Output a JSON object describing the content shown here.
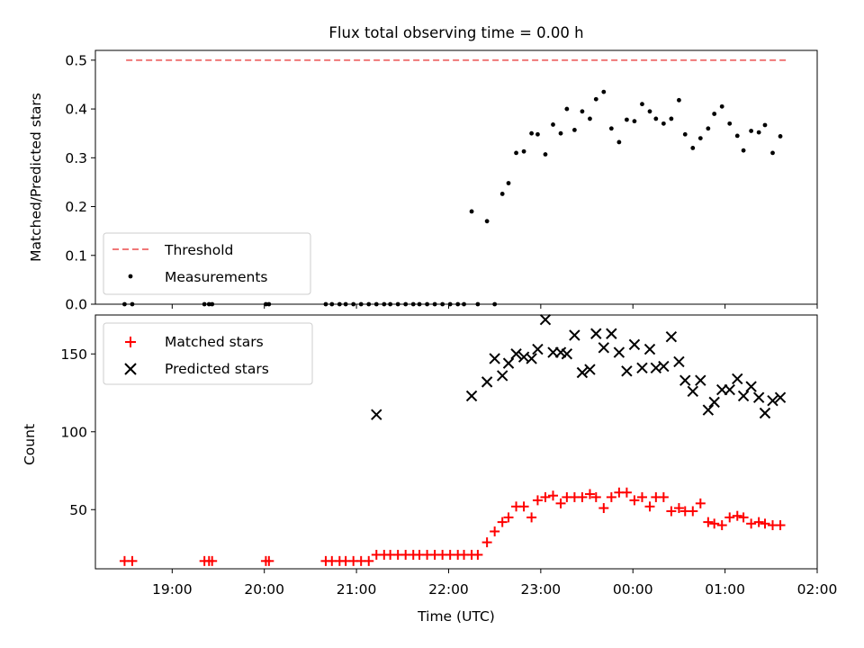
{
  "title": "Flux total observing time = 0.00 h",
  "chart_data": [
    {
      "type": "scatter",
      "ylabel": "Matched/Predicted stars",
      "ylim": [
        0,
        0.52
      ],
      "yticks": [
        0.0,
        0.1,
        0.2,
        0.3,
        0.4,
        0.5
      ],
      "ytick_labels": [
        "0.0",
        "0.1",
        "0.2",
        "0.3",
        "0.4",
        "0.5"
      ],
      "legend": {
        "placement": "lower-left",
        "entries": [
          "Threshold",
          "Measurements"
        ]
      },
      "colors": {
        "threshold": "#f07878",
        "measurements": "#000000"
      },
      "threshold": {
        "name": "Threshold",
        "y": 0.5,
        "x": [
          "18:30",
          "01:40"
        ]
      },
      "measurements": {
        "name": "Measurements",
        "x": [
          "18:29",
          "18:34",
          "19:21",
          "19:24",
          "19:26",
          "20:01",
          "20:03",
          "20:40",
          "20:44",
          "20:49",
          "20:53",
          "20:58",
          "21:03",
          "21:08",
          "21:13",
          "21:18",
          "21:22",
          "21:27",
          "21:32",
          "21:37",
          "21:41",
          "21:46",
          "21:51",
          "21:56",
          "22:01",
          "22:06",
          "22:10",
          "22:15",
          "22:19",
          "22:25",
          "22:30",
          "22:35",
          "22:39",
          "22:44",
          "22:49",
          "22:54",
          "22:58",
          "23:03",
          "23:08",
          "23:13",
          "23:17",
          "23:22",
          "23:27",
          "23:32",
          "23:36",
          "23:41",
          "23:46",
          "23:51",
          "23:56",
          "00:01",
          "00:06",
          "00:11",
          "00:15",
          "00:20",
          "00:25",
          "00:30",
          "00:34",
          "00:39",
          "00:44",
          "00:49",
          "00:53",
          "00:58",
          "01:03",
          "01:08",
          "01:12",
          "01:17",
          "01:22",
          "01:26",
          "01:31",
          "01:36"
        ],
        "y": [
          0.0,
          0.0,
          0.0,
          0.0,
          0.0,
          0.0,
          0.0,
          0.0,
          0.0,
          0.0,
          0.0,
          0.0,
          0.0,
          0.0,
          0.0,
          0.0,
          0.0,
          0.0,
          0.0,
          0.0,
          0.0,
          0.0,
          0.0,
          0.0,
          0.0,
          0.0,
          0.0,
          0.19,
          0.0,
          0.17,
          0.0,
          0.226,
          0.248,
          0.31,
          0.313,
          0.35,
          0.348,
          0.307,
          0.368,
          0.35,
          0.4,
          0.357,
          0.395,
          0.38,
          0.42,
          0.435,
          0.36,
          0.332,
          0.378,
          0.375,
          0.41,
          0.395,
          0.38,
          0.37,
          0.38,
          0.418,
          0.348,
          0.32,
          0.34,
          0.36,
          0.39,
          0.405,
          0.37,
          0.345,
          0.315,
          0.355,
          0.352,
          0.367,
          0.31,
          0.344
        ]
      }
    },
    {
      "type": "scatter",
      "xlabel": "Time (UTC)",
      "ylabel": "Count",
      "ylim": [
        12,
        175
      ],
      "yticks": [
        50,
        100,
        150
      ],
      "ytick_labels": [
        "50",
        "100",
        "150"
      ],
      "xlim": [
        "18:10",
        "02:00"
      ],
      "xticks": [
        "19:00",
        "20:00",
        "21:00",
        "22:00",
        "23:00",
        "00:00",
        "01:00",
        "02:00"
      ],
      "legend": {
        "placement": "upper-left",
        "entries": [
          "Matched stars",
          "Predicted stars"
        ]
      },
      "colors": {
        "matched": "#ff0000",
        "predicted": "#000000"
      },
      "matched": {
        "name": "Matched stars",
        "x": [
          "18:29",
          "18:34",
          "19:21",
          "19:24",
          "19:26",
          "20:01",
          "20:03",
          "20:40",
          "20:44",
          "20:49",
          "20:53",
          "20:58",
          "21:03",
          "21:08",
          "21:13",
          "21:18",
          "21:22",
          "21:27",
          "21:32",
          "21:37",
          "21:41",
          "21:46",
          "21:51",
          "21:56",
          "22:01",
          "22:06",
          "22:10",
          "22:15",
          "22:19",
          "22:25",
          "22:30",
          "22:35",
          "22:39",
          "22:44",
          "22:49",
          "22:54",
          "22:58",
          "23:03",
          "23:08",
          "23:13",
          "23:17",
          "23:22",
          "23:27",
          "23:32",
          "23:36",
          "23:41",
          "23:46",
          "23:51",
          "23:56",
          "00:01",
          "00:06",
          "00:11",
          "00:15",
          "00:20",
          "00:25",
          "00:30",
          "00:34",
          "00:39",
          "00:44",
          "00:49",
          "00:53",
          "00:58",
          "01:03",
          "01:08",
          "01:12",
          "01:17",
          "01:22",
          "01:26",
          "01:31",
          "01:36"
        ],
        "y": [
          17,
          17,
          17,
          17,
          17,
          17,
          17,
          17,
          17,
          17,
          17,
          17,
          17,
          17,
          21,
          21,
          21,
          21,
          21,
          21,
          21,
          21,
          21,
          21,
          21,
          21,
          21,
          21,
          21,
          29,
          36,
          42,
          45,
          52,
          52,
          45,
          56,
          58,
          59,
          54,
          58,
          58,
          58,
          60,
          58,
          51,
          58,
          61,
          61,
          56,
          58,
          52,
          58,
          58,
          49,
          51,
          49,
          49,
          54,
          42,
          41,
          40,
          45,
          46,
          45,
          41,
          42,
          41,
          40,
          40
        ]
      },
      "predicted": {
        "name": "Predicted stars",
        "x": [
          "21:13",
          "22:15",
          "22:25",
          "22:30",
          "22:35",
          "22:39",
          "22:44",
          "22:49",
          "22:54",
          "22:58",
          "23:03",
          "23:08",
          "23:13",
          "23:17",
          "23:22",
          "23:27",
          "23:32",
          "23:36",
          "23:41",
          "23:46",
          "23:51",
          "23:56",
          "00:01",
          "00:06",
          "00:11",
          "00:15",
          "00:20",
          "00:25",
          "00:30",
          "00:34",
          "00:39",
          "00:44",
          "00:49",
          "00:53",
          "00:58",
          "01:03",
          "01:08",
          "01:12",
          "01:17",
          "01:22",
          "01:26",
          "01:31",
          "01:36"
        ],
        "y": [
          111,
          123,
          132,
          147,
          136,
          144,
          150,
          148,
          147,
          153,
          172,
          151,
          151,
          150,
          162,
          138,
          140,
          163,
          154,
          163,
          151,
          139,
          156,
          141,
          153,
          141,
          142,
          161,
          145,
          133,
          126,
          133,
          114,
          119,
          127,
          127,
          134,
          123,
          129,
          122,
          112,
          120,
          122
        ]
      }
    }
  ]
}
